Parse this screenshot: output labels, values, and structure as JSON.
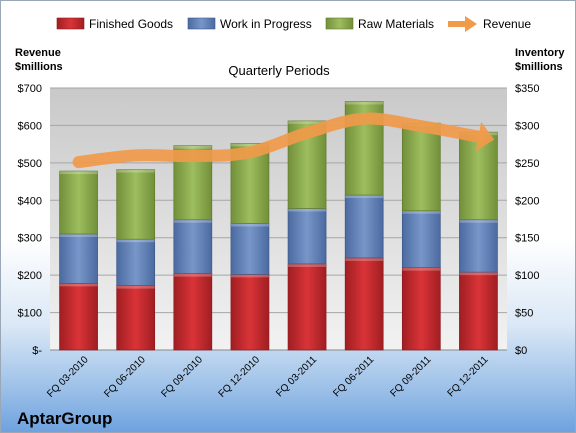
{
  "chart_data": {
    "type": "bar",
    "stacked": true,
    "title": "Quarterly Periods",
    "company": "AptarGroup",
    "y_left_label": [
      "Revenue",
      "$millions"
    ],
    "y_right_label": [
      "Inventory",
      "$millions"
    ],
    "y_left_ticks": [
      "$-",
      "$100",
      "$200",
      "$300",
      "$400",
      "$500",
      "$600",
      "$700"
    ],
    "y_right_ticks": [
      "$0",
      "$50",
      "$100",
      "$150",
      "$200",
      "$250",
      "$300",
      "$350"
    ],
    "ylim_left": [
      0,
      700
    ],
    "ylim_right": [
      0,
      350
    ],
    "categories": [
      "FQ 03-2010",
      "FQ 06-2010",
      "FQ 09-2010",
      "FQ 12-2010",
      "FQ 03-2011",
      "FQ 06-2011",
      "FQ 09-2011",
      "FQ 12-2011"
    ],
    "series": [
      {
        "name": "Finished Goods",
        "axis": "right",
        "color": "#c0282d",
        "values": [
          89,
          86,
          102,
          101,
          115,
          123,
          110,
          104
        ]
      },
      {
        "name": "Work in Progress",
        "axis": "right",
        "color": "#5f7fb5",
        "values": [
          66,
          62,
          72,
          68,
          74,
          84,
          76,
          70
        ]
      },
      {
        "name": "Raw Materials",
        "axis": "right",
        "color": "#8aac4c",
        "values": [
          84,
          93,
          99,
          107,
          117,
          125,
          117,
          117
        ]
      },
      {
        "name": "Revenue",
        "axis": "left",
        "type": "line",
        "color": "#f09a4a",
        "values": [
          502,
          520,
          518,
          528,
          580,
          618,
          598,
          570
        ]
      }
    ],
    "legend_position": "top",
    "grid": true
  }
}
